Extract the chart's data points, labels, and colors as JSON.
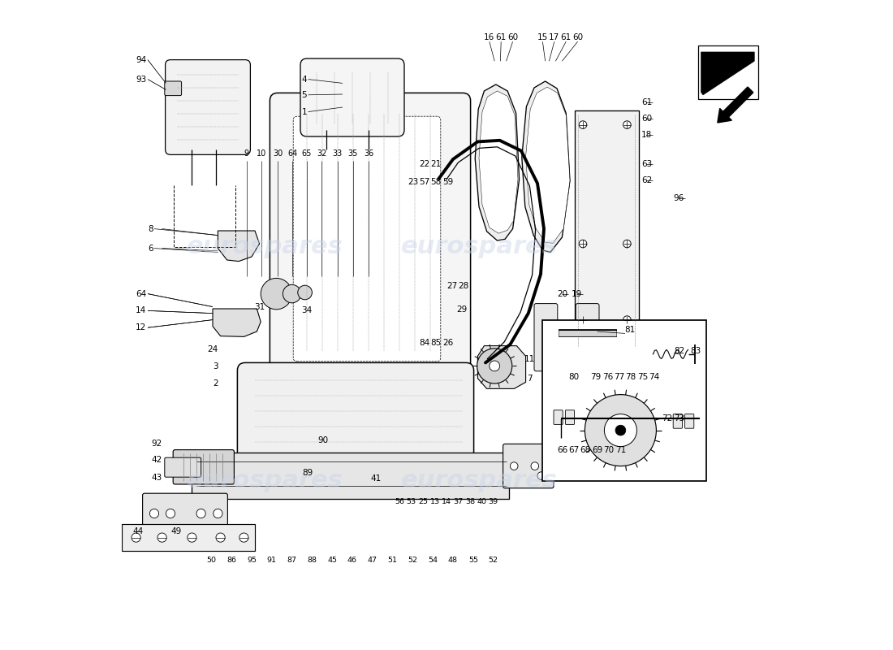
{
  "bg_color": "#ffffff",
  "line_color": "#000000",
  "watermark_color": "#c8d4e8",
  "watermark_text": "eurospares",
  "fig_width": 11.0,
  "fig_height": 8.0
}
